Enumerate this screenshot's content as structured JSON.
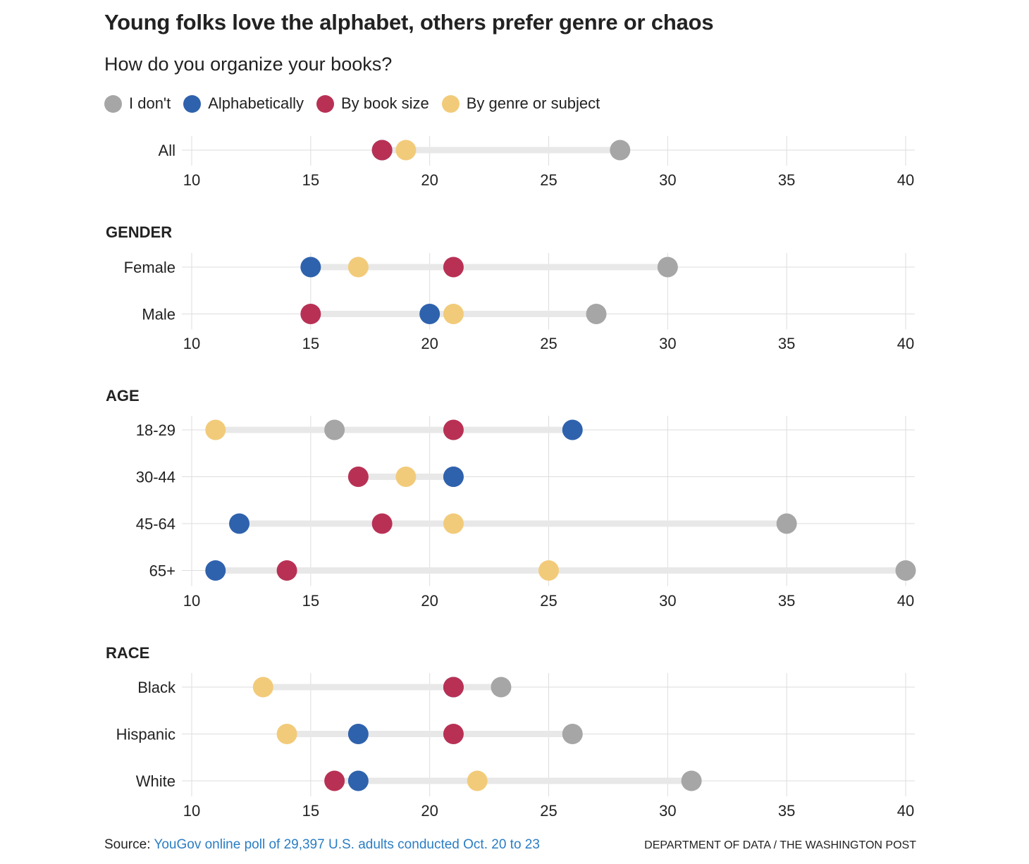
{
  "header": {
    "title": "Young folks love the alphabet, others prefer genre or chaos",
    "subtitle": "How do you organize your books?"
  },
  "colors": {
    "i_dont": "#a6a6a6",
    "alphabetically": "#2f62ad",
    "by_book_size": "#b83155",
    "by_genre": "#f2cb7a",
    "range_bar": "#e8e8e8",
    "grid": "#dddddd"
  },
  "legend": {
    "items": [
      {
        "key": "i_dont",
        "label": "I don't"
      },
      {
        "key": "alphabetically",
        "label": "Alphabetically"
      },
      {
        "key": "by_book_size",
        "label": "By book size"
      },
      {
        "key": "by_genre",
        "label": "By genre or subject"
      }
    ]
  },
  "chart_data": {
    "type": "scatter",
    "subtype": "dot-plot",
    "title": "Young folks love the alphabet, others prefer genre or chaos",
    "subtitle": "How do you organize your books?",
    "xlim": [
      10,
      40
    ],
    "xticks": [
      10,
      15,
      20,
      25,
      30,
      35,
      40
    ],
    "grid": true,
    "series_order": [
      "i_dont",
      "alphabetically",
      "by_book_size",
      "by_genre"
    ],
    "series_names": {
      "i_dont": "I don't",
      "alphabetically": "Alphabetically",
      "by_book_size": "By book size",
      "by_genre": "By genre or subject"
    },
    "panels": [
      {
        "heading": "",
        "rows": [
          {
            "label": "All",
            "values": {
              "i_dont": 28,
              "alphabetically": 18,
              "by_book_size": 18,
              "by_genre": 19
            }
          }
        ]
      },
      {
        "heading": "GENDER",
        "rows": [
          {
            "label": "Female",
            "values": {
              "i_dont": 30,
              "alphabetically": 15,
              "by_book_size": 21,
              "by_genre": 17
            }
          },
          {
            "label": "Male",
            "values": {
              "i_dont": 27,
              "alphabetically": 20,
              "by_book_size": 15,
              "by_genre": 21
            }
          }
        ]
      },
      {
        "heading": "AGE",
        "rows": [
          {
            "label": "18-29",
            "values": {
              "i_dont": 16,
              "alphabetically": 26,
              "by_book_size": 21,
              "by_genre": 11
            }
          },
          {
            "label": "30-44",
            "values": {
              "i_dont": 21,
              "alphabetically": 21,
              "by_book_size": 17,
              "by_genre": 19
            }
          },
          {
            "label": "45-64",
            "values": {
              "i_dont": 35,
              "alphabetically": 12,
              "by_book_size": 18,
              "by_genre": 21
            }
          },
          {
            "label": "65+",
            "values": {
              "i_dont": 40,
              "alphabetically": 11,
              "by_book_size": 14,
              "by_genre": 25
            }
          }
        ]
      },
      {
        "heading": "RACE",
        "rows": [
          {
            "label": "Black",
            "values": {
              "i_dont": 23,
              "alphabetically": 21,
              "by_book_size": 21,
              "by_genre": 13
            }
          },
          {
            "label": "Hispanic",
            "values": {
              "i_dont": 26,
              "alphabetically": 17,
              "by_book_size": 21,
              "by_genre": 14
            }
          },
          {
            "label": "White",
            "values": {
              "i_dont": 31,
              "alphabetically": 17,
              "by_book_size": 16,
              "by_genre": 22
            }
          }
        ]
      }
    ]
  },
  "footer": {
    "source_prefix": "Source: ",
    "source_link": "YouGov online poll of 29,397 U.S. adults conducted Oct. 20 to 23",
    "credit": "DEPARTMENT OF DATA / THE WASHINGTON POST"
  }
}
